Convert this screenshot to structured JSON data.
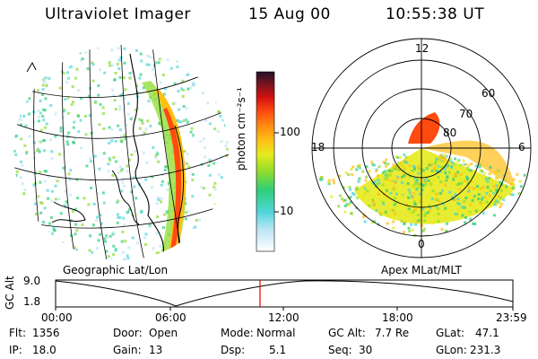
{
  "header": {
    "title": "Ultraviolet Imager",
    "date": "15 Aug 00",
    "time": "10:55:38 UT"
  },
  "colorbar": {
    "label": "photon cm⁻²s⁻¹",
    "ticks": [
      "100",
      "10"
    ],
    "colors": [
      "#ffffff",
      "#bde5f5",
      "#4fd6d9",
      "#2ecf7a",
      "#8cdc2e",
      "#e6ea1c",
      "#ffbe16",
      "#ff8a12",
      "#ff4a10",
      "#d01010",
      "#7a1420",
      "#20102a"
    ]
  },
  "left_panel": {
    "caption": "Geographic Lat/Lon"
  },
  "polar_panel": {
    "caption": "Apex MLat/MLT",
    "mlt_labels": [
      "12",
      "18",
      "6",
      "0"
    ],
    "mlat_labels": [
      "60",
      "70",
      "80"
    ]
  },
  "altitude_plot": {
    "axis_label": "GC Alt",
    "y_ticks": [
      "9.0",
      "1.8"
    ],
    "x_ticks": [
      "00:00",
      "06:00",
      "12:00",
      "18:00",
      "23:59"
    ],
    "marker_color": "#e00000"
  },
  "info": {
    "flt": {
      "label": "Flt:",
      "value": "1356"
    },
    "ip": {
      "label": "IP:",
      "value": "18.0"
    },
    "door": {
      "label": "Door:",
      "value": "Open"
    },
    "gain": {
      "label": "Gain:",
      "value": "13"
    },
    "mode": {
      "label": "Mode:",
      "value": "Normal"
    },
    "dsp": {
      "label": "Dsp:",
      "value": "5.1"
    },
    "gcalt": {
      "label": "GC Alt:",
      "value": "7.7 Re"
    },
    "seq": {
      "label": "Seq:",
      "value": "30"
    },
    "glat": {
      "label": "GLat:",
      "value": "47.1"
    },
    "glon": {
      "label": "GLon:",
      "value": "231.3"
    }
  }
}
